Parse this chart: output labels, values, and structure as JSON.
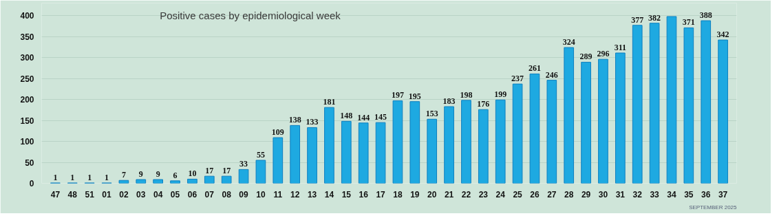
{
  "chart_data": {
    "type": "bar",
    "title": "Positive cases by epidemiological week",
    "categories": [
      "47",
      "48",
      "51",
      "01",
      "02",
      "03",
      "04",
      "05",
      "06",
      "07",
      "08",
      "09",
      "10",
      "11",
      "12",
      "13",
      "14",
      "15",
      "16",
      "17",
      "18",
      "19",
      "20",
      "21",
      "22",
      "23",
      "24",
      "25",
      "26",
      "27",
      "28",
      "29",
      "30",
      "31",
      "32",
      "33",
      "34",
      "35",
      "36",
      "37"
    ],
    "values": [
      1,
      1,
      1,
      1,
      7,
      9,
      9,
      6,
      10,
      17,
      17,
      33,
      55,
      109,
      138,
      133,
      181,
      148,
      144,
      145,
      197,
      195,
      153,
      183,
      198,
      176,
      199,
      237,
      261,
      246,
      324,
      289,
      296,
      311,
      377,
      382,
      398,
      371,
      388,
      342
    ],
    "value_labels": [
      "1",
      "1",
      "1",
      "1",
      "7",
      "9",
      "9",
      "6",
      "10",
      "17",
      "17",
      "33",
      "55",
      "109",
      "138",
      "133",
      "181",
      "148",
      "144",
      "145",
      "197",
      "195",
      "153",
      "183",
      "198",
      "176",
      "199",
      "237",
      "261",
      "246",
      "324",
      "289",
      "296",
      "311",
      "377",
      "382",
      null,
      "371",
      "388",
      "342"
    ],
    "color": "#1ea9e1",
    "ylim": [
      0,
      430
    ],
    "yticks": [
      0,
      50,
      100,
      150,
      200,
      250,
      300,
      350,
      400
    ],
    "grid": "y",
    "annotations": [
      "SEPTEMBER 2025"
    ]
  }
}
